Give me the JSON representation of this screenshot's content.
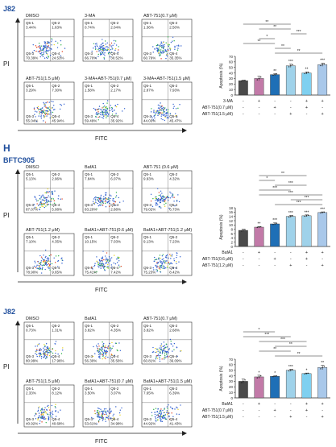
{
  "colors": {
    "title_blue": "#1f4e9c",
    "bar_fills": [
      "#4a4a4a",
      "#c27aa8",
      "#1f6fb6",
      "#9fd2ea",
      "#7fd0f0",
      "#a9c8ea"
    ],
    "bar_fills_mid": [
      "#4a4a4a",
      "#c27aa8",
      "#1f6fb6",
      "#9fd2ea",
      "#9fd2ea",
      "#a9c8ea"
    ]
  },
  "section_label": "H",
  "axis": {
    "pi": "PI",
    "fitc": "FITC"
  },
  "quad_labels": [
    "Q5-1",
    "Q5-2",
    "Q5-3",
    "Q5-4"
  ],
  "panels": [
    {
      "cell_line": "J82",
      "flow_rows": [
        [
          {
            "title": "DMSO",
            "values": [
              "3.44%",
              "1.63%",
              "70.39%",
              "24.53%"
            ]
          },
          {
            "title": "3-MA",
            "values": [
              "0.74%",
              "2.04%",
              "66.70%",
              "30.52%"
            ]
          },
          {
            "title": "ABT-751(0.7 μM)",
            "values": [
              "1.36%",
              "2.50%",
              "60.79%",
              "35.35%"
            ]
          }
        ],
        [
          {
            "title": "ABT-751(1.5 μM)",
            "values": [
              "3.29%",
              "7.30%",
              "55.04%",
              "45.94%"
            ]
          },
          {
            "title": "3-MA+ABT-751(0.7 μM)",
            "values": [
              "1.58%",
              "2.17%",
              "59.49%",
              "35.92%"
            ]
          },
          {
            "title": "3-MA+ABT-751(1.5 μM)",
            "values": [
              "2.87%",
              "7.93%",
              "44.03%",
              "45.47%"
            ]
          }
        ]
      ],
      "treat_labels": [
        "3-MA",
        "ABT-751(0.7 μM)",
        "ABT-751(1.5 μM)"
      ],
      "treat_signs": [
        [
          "-",
          "+",
          "-",
          "-",
          "+",
          "+"
        ],
        [
          "-",
          "-",
          "+",
          "-",
          "+",
          "-"
        ],
        [
          "-",
          "-",
          "-",
          "+",
          "-",
          "+"
        ]
      ]
    },
    {
      "cell_line": "BFTC905",
      "flow_rows": [
        [
          {
            "title": "DMSO",
            "values": [
              "5.13%",
              "2.96%",
              "87.07%",
              "5.08%"
            ]
          },
          {
            "title": "BafA1",
            "values": [
              "7.84%",
              "6.07%",
              "83.20%",
              "2.88%"
            ]
          },
          {
            "title": "ABT-751 (0.6 μM)",
            "values": [
              "9.93%",
              "4.32%",
              "79.02%",
              "6.73%"
            ]
          }
        ],
        [
          {
            "title": "ABT-751(1.2 μM)",
            "values": [
              "7.10%",
              "4.35%",
              "78.90%",
              "9.65%"
            ]
          },
          {
            "title": "BafA1+ABT-751(0.6 μM)",
            "values": [
              "10.15%",
              "7.03%",
              "75.41%",
              "7.42%"
            ]
          },
          {
            "title": "BafA1+ABT-751(1.2 μM)",
            "values": [
              "9.13%",
              "7.23%",
              "75.23%",
              "8.42%"
            ]
          }
        ]
      ],
      "treat_labels": [
        "BafA1",
        "ABT-751(0.6 μM)",
        "ABT-751(1.2 μM)"
      ],
      "treat_signs": [
        [
          "-",
          "+",
          "-",
          "-",
          "+",
          "+"
        ],
        [
          "-",
          "-",
          "+",
          "-",
          "+",
          "-"
        ],
        [
          "-",
          "-",
          "-",
          "+",
          "-",
          "+"
        ]
      ]
    },
    {
      "cell_line": "J82",
      "flow_rows": [
        [
          {
            "title": "DMSO",
            "values": [
              "0.73%",
              "1.31%",
              "80.99%",
              "17.96%"
            ]
          },
          {
            "title": "BafA1",
            "values": [
              "3.82%",
              "4.35%",
              "56.30%",
              "35.56%"
            ]
          },
          {
            "title": "ABT-751(0.7 μM)",
            "values": [
              "3.82%",
              "2.68%",
              "60.81%",
              "36.09%"
            ]
          }
        ],
        [
          {
            "title": "ABT-751(1.5 μM)",
            "values": [
              "2.33%",
              "8.12%",
              "40.92%",
              "40.68%"
            ]
          },
          {
            "title": "BafA1+ABT-751(0.7 μM)",
            "values": [
              "3.50%",
              "3.07%",
              "53.61%",
              "34.98%"
            ]
          },
          {
            "title": "BafA1+ABT-751(1.5 μM)",
            "values": [
              "7.65%",
              "6.39%",
              "44.92%",
              "41.43%"
            ]
          }
        ]
      ],
      "treat_labels": [
        "BafA1",
        "ABT-751(0.7 μM)",
        "ABT-751(1.5 μM)"
      ],
      "treat_signs": [
        [
          "-",
          "+",
          "-",
          "-",
          "+",
          "+"
        ],
        [
          "-",
          "-",
          "+",
          "-",
          "+",
          "-"
        ],
        [
          "-",
          "-",
          "-",
          "+",
          "-",
          "+"
        ]
      ]
    }
  ],
  "chart_data": [
    {
      "type": "bar",
      "ylabel": "Apoptosis (%)",
      "ylim": [
        0,
        70
      ],
      "yticks": [
        "0",
        "10",
        "20",
        "30",
        "40",
        "50",
        "60",
        "70"
      ],
      "yticks_val": [
        0,
        10,
        20,
        30,
        40,
        50,
        60,
        70
      ],
      "values": [
        26,
        30,
        37,
        53,
        40,
        55
      ],
      "errors": [
        1,
        4,
        2,
        3,
        2,
        3
      ],
      "stars": [
        "",
        "",
        "**",
        "***",
        "**",
        "***"
      ],
      "brackets": [
        {
          "from": 2,
          "to": 5,
          "label": "**"
        },
        {
          "from": 2,
          "to": 3,
          "label": "**"
        },
        {
          "from": 0,
          "to": 2,
          "label": "**"
        },
        {
          "from": 1,
          "to": 2,
          "label": "*"
        },
        {
          "from": 3,
          "to": 4,
          "label": "***"
        },
        {
          "from": 1,
          "to": 3,
          "label": "**"
        },
        {
          "from": 0,
          "to": 3,
          "label": "**"
        }
      ]
    },
    {
      "type": "bar",
      "ylabel": "Apoptosis (%)",
      "ylim": [
        0,
        18
      ],
      "yticks": [
        "0",
        "2",
        "4",
        "6",
        "8",
        "10",
        "12",
        "14",
        "16",
        "18"
      ],
      "yticks_val": [
        0,
        2,
        4,
        6,
        8,
        10,
        12,
        14,
        16,
        18
      ],
      "values": [
        7.5,
        9,
        10.5,
        14,
        14.3,
        15.8
      ],
      "errors": [
        0.6,
        0.3,
        0.5,
        0.5,
        0.4,
        0.3
      ],
      "stars": [
        "",
        "**",
        "***",
        "***",
        "***",
        "***"
      ],
      "brackets": [
        {
          "from": 2,
          "to": 5,
          "label": "***"
        },
        {
          "from": 3,
          "to": 5,
          "label": "***"
        },
        {
          "from": 1,
          "to": 5,
          "label": "***"
        },
        {
          "from": 1,
          "to": 3,
          "label": "***"
        },
        {
          "from": 2,
          "to": 4,
          "label": "***"
        },
        {
          "from": 1,
          "to": 2,
          "label": "*"
        },
        {
          "from": 1,
          "to": 4,
          "label": "**"
        }
      ]
    },
    {
      "type": "bar",
      "ylabel": "Apoptosis (%)",
      "ylim": [
        0,
        70
      ],
      "yticks": [
        "0",
        "10",
        "20",
        "30",
        "40",
        "50",
        "60",
        "70"
      ],
      "yticks_val": [
        0,
        10,
        20,
        30,
        40,
        50,
        60,
        70
      ],
      "values": [
        30,
        38,
        39,
        50,
        44,
        55
      ],
      "errors": [
        4,
        3,
        1,
        2,
        1,
        4
      ],
      "stars": [
        "",
        "*",
        "*",
        "***",
        "*",
        "**"
      ],
      "brackets": [
        {
          "from": 2,
          "to": 5,
          "label": "**"
        },
        {
          "from": 1,
          "to": 3,
          "label": "**"
        },
        {
          "from": 2,
          "to": 4,
          "label": "**"
        },
        {
          "from": 1,
          "to": 4,
          "label": "***"
        },
        {
          "from": 0,
          "to": 3,
          "label": "***"
        },
        {
          "from": 0,
          "to": 2,
          "label": "*"
        }
      ]
    }
  ]
}
